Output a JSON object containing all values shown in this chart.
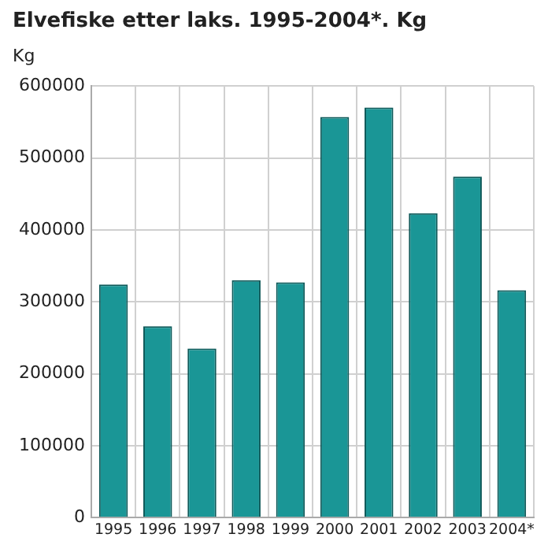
{
  "chart_data": {
    "type": "bar",
    "title": "Elvefiske etter laks. 1995-2004*. Kg",
    "ylabel": "Kg",
    "categories": [
      "1995",
      "1996",
      "1997",
      "1998",
      "1999",
      "2000",
      "2001",
      "2002",
      "2003",
      "2004*"
    ],
    "values": [
      324000,
      266000,
      235000,
      330000,
      327000,
      557000,
      570000,
      423000,
      474000,
      316000
    ],
    "color": "#1a9696",
    "ylim": [
      0,
      600000
    ],
    "yticks": [
      0,
      100000,
      200000,
      300000,
      400000,
      500000,
      600000
    ],
    "grid": true,
    "legend": false
  }
}
